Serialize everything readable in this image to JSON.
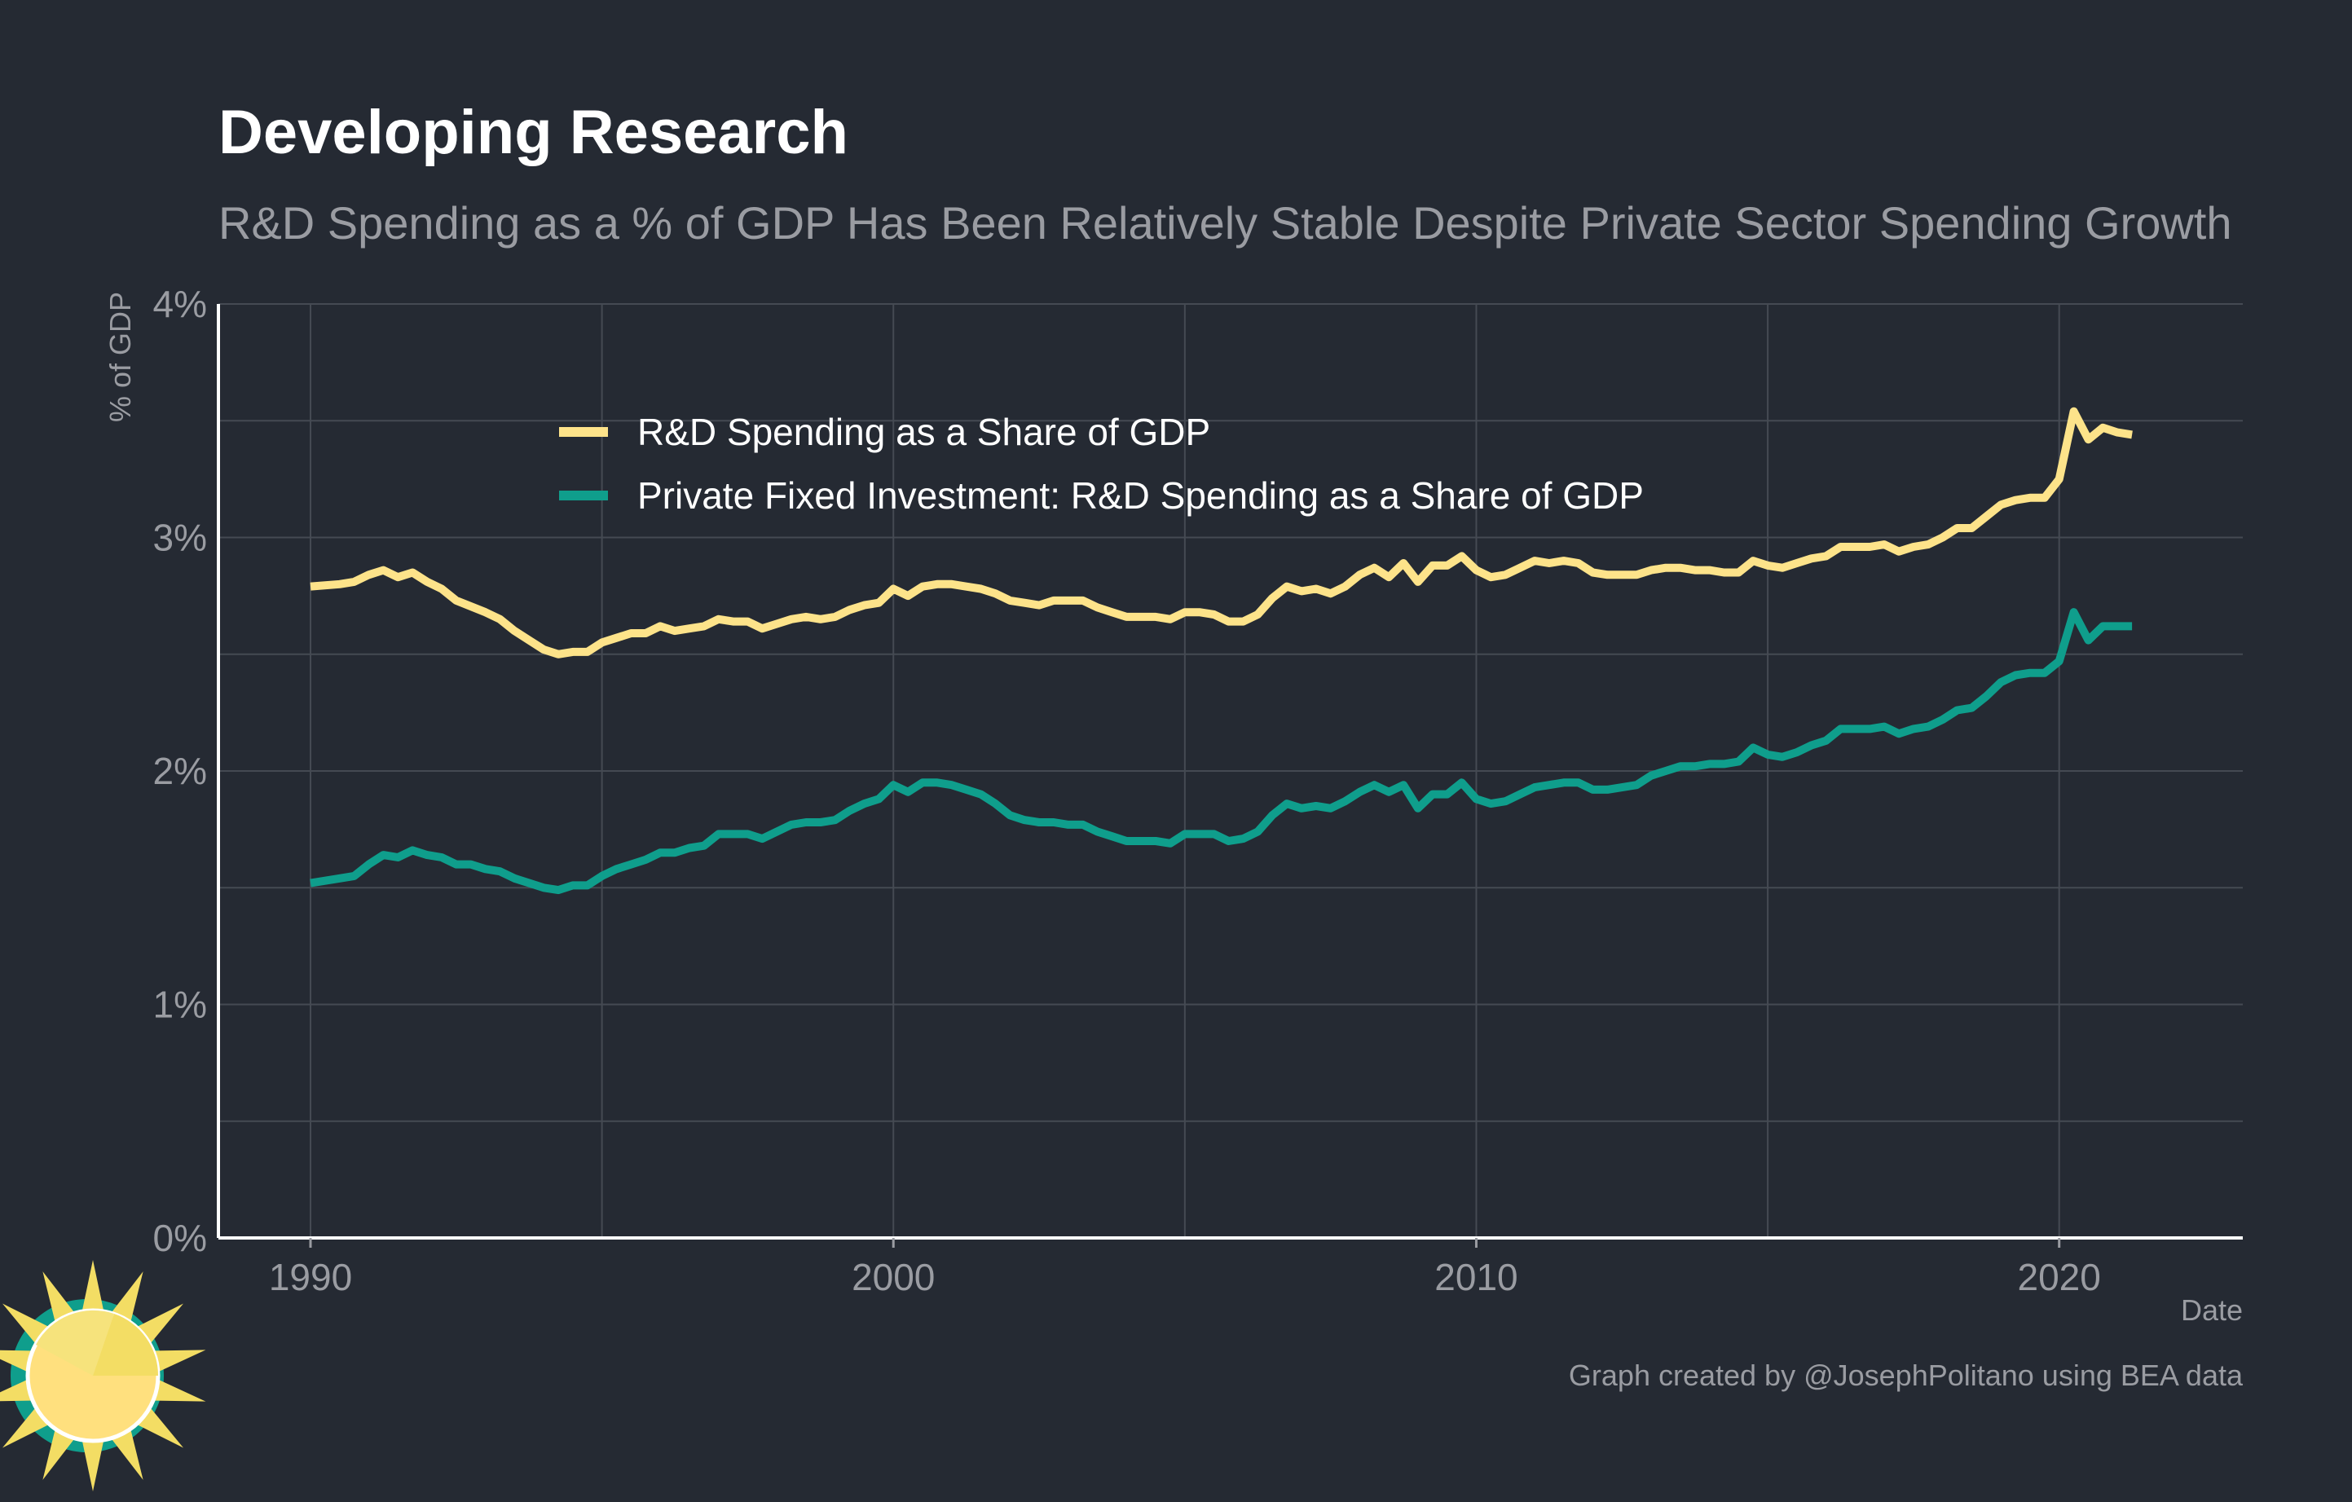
{
  "title": "Developing Research",
  "subtitle": "R&D Spending as a % of GDP Has Been Relatively Stable Despite Private Sector Spending Growth",
  "caption": "Graph created by @JosephPolitano using BEA data",
  "logo_icon": "sun-logo-icon",
  "colors": {
    "background": "#252a33",
    "series_1": "#fde38a",
    "series_2": "#0f9e8c",
    "grid": "#454a53",
    "text": "#9a9ca2"
  },
  "chart_data": {
    "type": "line",
    "title": "Developing Research",
    "subtitle": "R&D Spending as a % of GDP Has Been Relatively Stable Despite Private Sector Spending Growth",
    "xlabel": "Date",
    "ylabel": "% of GDP",
    "xlim": [
      1988.42,
      2023.15
    ],
    "ylim": [
      0,
      4
    ],
    "x_ticks": [
      1990,
      2000,
      2010,
      2020
    ],
    "x_tick_labels": [
      "1990",
      "2000",
      "2010",
      "2020"
    ],
    "y_ticks": [
      0,
      1,
      2,
      3,
      4
    ],
    "y_tick_labels": [
      "0%",
      "1%",
      "2%",
      "3%",
      "4%"
    ],
    "grid": true,
    "legend_position": "top-left inside plot",
    "series": [
      {
        "name": "R&D Spending as a Share of GDP",
        "color": "#fde38a",
        "points": [
          [
            1990.0,
            2.79
          ],
          [
            1990.5,
            2.8
          ],
          [
            1990.75,
            2.81
          ],
          [
            1991.0,
            2.84
          ],
          [
            1991.25,
            2.86
          ],
          [
            1991.5,
            2.83
          ],
          [
            1991.75,
            2.85
          ],
          [
            1992.0,
            2.81
          ],
          [
            1992.25,
            2.78
          ],
          [
            1992.5,
            2.73
          ],
          [
            1993.0,
            2.68
          ],
          [
            1993.25,
            2.65
          ],
          [
            1993.5,
            2.6
          ],
          [
            1993.75,
            2.56
          ],
          [
            1994.0,
            2.52
          ],
          [
            1994.25,
            2.5
          ],
          [
            1994.5,
            2.51
          ],
          [
            1994.75,
            2.51
          ],
          [
            1995.0,
            2.55
          ],
          [
            1995.25,
            2.57
          ],
          [
            1995.5,
            2.59
          ],
          [
            1995.75,
            2.59
          ],
          [
            1996.0,
            2.62
          ],
          [
            1996.25,
            2.6
          ],
          [
            1996.5,
            2.61
          ],
          [
            1996.75,
            2.62
          ],
          [
            1997.0,
            2.65
          ],
          [
            1997.25,
            2.64
          ],
          [
            1997.5,
            2.64
          ],
          [
            1997.75,
            2.61
          ],
          [
            1998.0,
            2.63
          ],
          [
            1998.25,
            2.65
          ],
          [
            1998.5,
            2.66
          ],
          [
            1998.75,
            2.65
          ],
          [
            1999.0,
            2.66
          ],
          [
            1999.25,
            2.69
          ],
          [
            1999.5,
            2.71
          ],
          [
            1999.75,
            2.72
          ],
          [
            2000.0,
            2.78
          ],
          [
            2000.25,
            2.75
          ],
          [
            2000.5,
            2.79
          ],
          [
            2000.75,
            2.8
          ],
          [
            2001.0,
            2.8
          ],
          [
            2001.25,
            2.79
          ],
          [
            2001.5,
            2.78
          ],
          [
            2001.75,
            2.76
          ],
          [
            2002.0,
            2.73
          ],
          [
            2002.25,
            2.72
          ],
          [
            2002.5,
            2.71
          ],
          [
            2002.75,
            2.73
          ],
          [
            2003.0,
            2.73
          ],
          [
            2003.25,
            2.73
          ],
          [
            2003.5,
            2.7
          ],
          [
            2003.75,
            2.68
          ],
          [
            2004.0,
            2.66
          ],
          [
            2004.5,
            2.66
          ],
          [
            2004.75,
            2.65
          ],
          [
            2005.0,
            2.68
          ],
          [
            2005.25,
            2.68
          ],
          [
            2005.5,
            2.67
          ],
          [
            2005.75,
            2.64
          ],
          [
            2006.0,
            2.64
          ],
          [
            2006.25,
            2.67
          ],
          [
            2006.5,
            2.74
          ],
          [
            2006.75,
            2.79
          ],
          [
            2007.0,
            2.77
          ],
          [
            2007.25,
            2.78
          ],
          [
            2007.5,
            2.76
          ],
          [
            2007.75,
            2.79
          ],
          [
            2008.0,
            2.84
          ],
          [
            2008.25,
            2.87
          ],
          [
            2008.5,
            2.83
          ],
          [
            2008.75,
            2.89
          ],
          [
            2009.0,
            2.81
          ],
          [
            2009.25,
            2.88
          ],
          [
            2009.5,
            2.88
          ],
          [
            2009.75,
            2.92
          ],
          [
            2010.0,
            2.86
          ],
          [
            2010.25,
            2.83
          ],
          [
            2010.5,
            2.84
          ],
          [
            2010.75,
            2.87
          ],
          [
            2011.0,
            2.9
          ],
          [
            2011.25,
            2.89
          ],
          [
            2011.5,
            2.9
          ],
          [
            2011.75,
            2.89
          ],
          [
            2012.0,
            2.85
          ],
          [
            2012.25,
            2.84
          ],
          [
            2012.5,
            2.84
          ],
          [
            2012.75,
            2.84
          ],
          [
            2013.0,
            2.86
          ],
          [
            2013.25,
            2.87
          ],
          [
            2013.5,
            2.87
          ],
          [
            2013.75,
            2.86
          ],
          [
            2014.0,
            2.86
          ],
          [
            2014.25,
            2.85
          ],
          [
            2014.5,
            2.85
          ],
          [
            2014.75,
            2.9
          ],
          [
            2015.0,
            2.88
          ],
          [
            2015.25,
            2.87
          ],
          [
            2015.5,
            2.89
          ],
          [
            2015.75,
            2.91
          ],
          [
            2016.0,
            2.92
          ],
          [
            2016.25,
            2.96
          ],
          [
            2016.5,
            2.96
          ],
          [
            2016.75,
            2.96
          ],
          [
            2017.0,
            2.97
          ],
          [
            2017.25,
            2.94
          ],
          [
            2017.5,
            2.96
          ],
          [
            2017.75,
            2.97
          ],
          [
            2018.0,
            3.0
          ],
          [
            2018.25,
            3.04
          ],
          [
            2018.5,
            3.04
          ],
          [
            2018.75,
            3.09
          ],
          [
            2019.0,
            3.14
          ],
          [
            2019.25,
            3.16
          ],
          [
            2019.5,
            3.17
          ],
          [
            2019.75,
            3.17
          ],
          [
            2020.0,
            3.25
          ],
          [
            2020.25,
            3.54
          ],
          [
            2020.5,
            3.42
          ],
          [
            2020.75,
            3.47
          ],
          [
            2021.0,
            3.45
          ],
          [
            2021.25,
            3.44
          ]
        ]
      },
      {
        "name": "Private Fixed Investment: R&D Spending as a Share of GDP",
        "color": "#0f9e8c",
        "points": [
          [
            1990.0,
            1.52
          ],
          [
            1990.25,
            1.53
          ],
          [
            1990.5,
            1.54
          ],
          [
            1990.75,
            1.55
          ],
          [
            1991.0,
            1.6
          ],
          [
            1991.25,
            1.64
          ],
          [
            1991.5,
            1.63
          ],
          [
            1991.75,
            1.66
          ],
          [
            1992.0,
            1.64
          ],
          [
            1992.25,
            1.63
          ],
          [
            1992.5,
            1.6
          ],
          [
            1992.75,
            1.6
          ],
          [
            1993.0,
            1.58
          ],
          [
            1993.25,
            1.57
          ],
          [
            1993.5,
            1.54
          ],
          [
            1993.75,
            1.52
          ],
          [
            1994.0,
            1.5
          ],
          [
            1994.25,
            1.49
          ],
          [
            1994.5,
            1.51
          ],
          [
            1994.75,
            1.51
          ],
          [
            1995.0,
            1.55
          ],
          [
            1995.25,
            1.58
          ],
          [
            1995.5,
            1.6
          ],
          [
            1995.75,
            1.62
          ],
          [
            1996.0,
            1.65
          ],
          [
            1996.25,
            1.65
          ],
          [
            1996.5,
            1.67
          ],
          [
            1996.75,
            1.68
          ],
          [
            1997.0,
            1.73
          ],
          [
            1997.25,
            1.73
          ],
          [
            1997.5,
            1.73
          ],
          [
            1997.75,
            1.71
          ],
          [
            1998.0,
            1.74
          ],
          [
            1998.25,
            1.77
          ],
          [
            1998.5,
            1.78
          ],
          [
            1998.75,
            1.78
          ],
          [
            1999.0,
            1.79
          ],
          [
            1999.25,
            1.83
          ],
          [
            1999.5,
            1.86
          ],
          [
            1999.75,
            1.88
          ],
          [
            2000.0,
            1.94
          ],
          [
            2000.25,
            1.91
          ],
          [
            2000.5,
            1.95
          ],
          [
            2000.75,
            1.95
          ],
          [
            2001.0,
            1.94
          ],
          [
            2001.25,
            1.92
          ],
          [
            2001.5,
            1.9
          ],
          [
            2001.75,
            1.86
          ],
          [
            2002.0,
            1.81
          ],
          [
            2002.25,
            1.79
          ],
          [
            2002.5,
            1.78
          ],
          [
            2002.75,
            1.78
          ],
          [
            2003.0,
            1.77
          ],
          [
            2003.25,
            1.77
          ],
          [
            2003.5,
            1.74
          ],
          [
            2003.75,
            1.72
          ],
          [
            2004.0,
            1.7
          ],
          [
            2004.5,
            1.7
          ],
          [
            2004.75,
            1.69
          ],
          [
            2005.0,
            1.73
          ],
          [
            2005.25,
            1.73
          ],
          [
            2005.5,
            1.73
          ],
          [
            2005.75,
            1.7
          ],
          [
            2006.0,
            1.71
          ],
          [
            2006.25,
            1.74
          ],
          [
            2006.5,
            1.81
          ],
          [
            2006.75,
            1.86
          ],
          [
            2007.0,
            1.84
          ],
          [
            2007.25,
            1.85
          ],
          [
            2007.5,
            1.84
          ],
          [
            2007.75,
            1.87
          ],
          [
            2008.0,
            1.91
          ],
          [
            2008.25,
            1.94
          ],
          [
            2008.5,
            1.91
          ],
          [
            2008.75,
            1.94
          ],
          [
            2009.0,
            1.84
          ],
          [
            2009.25,
            1.9
          ],
          [
            2009.5,
            1.9
          ],
          [
            2009.75,
            1.95
          ],
          [
            2010.0,
            1.88
          ],
          [
            2010.25,
            1.86
          ],
          [
            2010.5,
            1.87
          ],
          [
            2010.75,
            1.9
          ],
          [
            2011.0,
            1.93
          ],
          [
            2011.25,
            1.94
          ],
          [
            2011.5,
            1.95
          ],
          [
            2011.75,
            1.95
          ],
          [
            2012.0,
            1.92
          ],
          [
            2012.25,
            1.92
          ],
          [
            2012.5,
            1.93
          ],
          [
            2012.75,
            1.94
          ],
          [
            2013.0,
            1.98
          ],
          [
            2013.25,
            2.0
          ],
          [
            2013.5,
            2.02
          ],
          [
            2013.75,
            2.02
          ],
          [
            2014.0,
            2.03
          ],
          [
            2014.25,
            2.03
          ],
          [
            2014.5,
            2.04
          ],
          [
            2014.75,
            2.1
          ],
          [
            2015.0,
            2.07
          ],
          [
            2015.25,
            2.06
          ],
          [
            2015.5,
            2.08
          ],
          [
            2015.75,
            2.11
          ],
          [
            2016.0,
            2.13
          ],
          [
            2016.25,
            2.18
          ],
          [
            2016.5,
            2.18
          ],
          [
            2016.75,
            2.18
          ],
          [
            2017.0,
            2.19
          ],
          [
            2017.25,
            2.16
          ],
          [
            2017.5,
            2.18
          ],
          [
            2017.75,
            2.19
          ],
          [
            2018.0,
            2.22
          ],
          [
            2018.25,
            2.26
          ],
          [
            2018.5,
            2.27
          ],
          [
            2018.75,
            2.32
          ],
          [
            2019.0,
            2.38
          ],
          [
            2019.25,
            2.41
          ],
          [
            2019.5,
            2.42
          ],
          [
            2019.75,
            2.42
          ],
          [
            2020.0,
            2.47
          ],
          [
            2020.25,
            2.68
          ],
          [
            2020.5,
            2.56
          ],
          [
            2020.75,
            2.62
          ],
          [
            2021.0,
            2.62
          ],
          [
            2021.25,
            2.62
          ]
        ]
      }
    ]
  }
}
